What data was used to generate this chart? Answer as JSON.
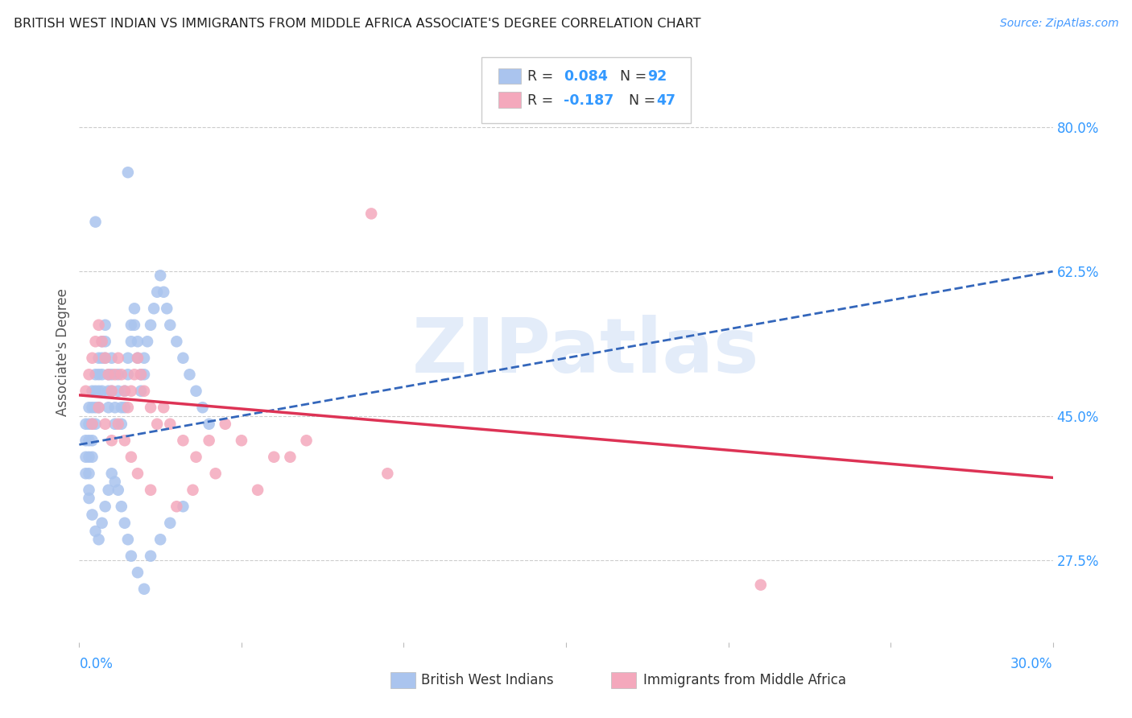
{
  "title": "BRITISH WEST INDIAN VS IMMIGRANTS FROM MIDDLE AFRICA ASSOCIATE'S DEGREE CORRELATION CHART",
  "source": "Source: ZipAtlas.com",
  "ylabel": "Associate's Degree",
  "ytick_labels": [
    "27.5%",
    "45.0%",
    "62.5%",
    "80.0%"
  ],
  "ytick_values": [
    0.275,
    0.45,
    0.625,
    0.8
  ],
  "xmin": 0.0,
  "xmax": 0.3,
  "ymin": 0.175,
  "ymax": 0.88,
  "blue_R": 0.084,
  "blue_N": 92,
  "pink_R": -0.187,
  "pink_N": 47,
  "blue_color": "#aac4ee",
  "pink_color": "#f4a8bc",
  "blue_line_color": "#3366bb",
  "pink_line_color": "#dd3355",
  "legend_label_blue": "British West Indians",
  "legend_label_pink": "Immigrants from Middle Africa",
  "blue_line_x0": 0.0,
  "blue_line_y0": 0.415,
  "blue_line_x1": 0.3,
  "blue_line_y1": 0.625,
  "pink_line_x0": 0.0,
  "pink_line_y0": 0.475,
  "pink_line_x1": 0.3,
  "pink_line_y1": 0.375,
  "watermark_text": "ZIPatlas",
  "blue_scatter_x": [
    0.002,
    0.002,
    0.002,
    0.002,
    0.003,
    0.003,
    0.003,
    0.003,
    0.003,
    0.003,
    0.004,
    0.004,
    0.004,
    0.004,
    0.004,
    0.005,
    0.005,
    0.005,
    0.005,
    0.006,
    0.006,
    0.006,
    0.006,
    0.007,
    0.007,
    0.007,
    0.007,
    0.008,
    0.008,
    0.008,
    0.009,
    0.009,
    0.009,
    0.01,
    0.01,
    0.01,
    0.011,
    0.011,
    0.012,
    0.012,
    0.013,
    0.013,
    0.014,
    0.014,
    0.015,
    0.015,
    0.016,
    0.016,
    0.017,
    0.017,
    0.018,
    0.018,
    0.019,
    0.019,
    0.02,
    0.02,
    0.021,
    0.022,
    0.023,
    0.024,
    0.025,
    0.026,
    0.027,
    0.028,
    0.03,
    0.032,
    0.034,
    0.036,
    0.038,
    0.04,
    0.003,
    0.004,
    0.005,
    0.006,
    0.007,
    0.008,
    0.009,
    0.01,
    0.011,
    0.012,
    0.013,
    0.014,
    0.015,
    0.016,
    0.018,
    0.02,
    0.022,
    0.025,
    0.028,
    0.032,
    0.015,
    0.005
  ],
  "blue_scatter_y": [
    0.44,
    0.42,
    0.4,
    0.38,
    0.46,
    0.44,
    0.42,
    0.4,
    0.38,
    0.36,
    0.48,
    0.46,
    0.44,
    0.42,
    0.4,
    0.5,
    0.48,
    0.46,
    0.44,
    0.52,
    0.5,
    0.48,
    0.46,
    0.54,
    0.52,
    0.5,
    0.48,
    0.56,
    0.54,
    0.52,
    0.5,
    0.48,
    0.46,
    0.52,
    0.5,
    0.48,
    0.46,
    0.44,
    0.5,
    0.48,
    0.46,
    0.44,
    0.48,
    0.46,
    0.52,
    0.5,
    0.56,
    0.54,
    0.58,
    0.56,
    0.54,
    0.52,
    0.5,
    0.48,
    0.52,
    0.5,
    0.54,
    0.56,
    0.58,
    0.6,
    0.62,
    0.6,
    0.58,
    0.56,
    0.54,
    0.52,
    0.5,
    0.48,
    0.46,
    0.44,
    0.35,
    0.33,
    0.31,
    0.3,
    0.32,
    0.34,
    0.36,
    0.38,
    0.37,
    0.36,
    0.34,
    0.32,
    0.3,
    0.28,
    0.26,
    0.24,
    0.28,
    0.3,
    0.32,
    0.34,
    0.745,
    0.685
  ],
  "pink_scatter_x": [
    0.002,
    0.003,
    0.004,
    0.005,
    0.006,
    0.007,
    0.008,
    0.009,
    0.01,
    0.011,
    0.012,
    0.013,
    0.014,
    0.015,
    0.016,
    0.017,
    0.018,
    0.019,
    0.02,
    0.022,
    0.024,
    0.026,
    0.028,
    0.032,
    0.036,
    0.04,
    0.045,
    0.05,
    0.06,
    0.07,
    0.004,
    0.006,
    0.008,
    0.01,
    0.012,
    0.014,
    0.016,
    0.018,
    0.022,
    0.03,
    0.035,
    0.042,
    0.055,
    0.065,
    0.095,
    0.21,
    0.09
  ],
  "pink_scatter_y": [
    0.48,
    0.5,
    0.52,
    0.54,
    0.56,
    0.54,
    0.52,
    0.5,
    0.48,
    0.5,
    0.52,
    0.5,
    0.48,
    0.46,
    0.48,
    0.5,
    0.52,
    0.5,
    0.48,
    0.46,
    0.44,
    0.46,
    0.44,
    0.42,
    0.4,
    0.42,
    0.44,
    0.42,
    0.4,
    0.42,
    0.44,
    0.46,
    0.44,
    0.42,
    0.44,
    0.42,
    0.4,
    0.38,
    0.36,
    0.34,
    0.36,
    0.38,
    0.36,
    0.4,
    0.38,
    0.245,
    0.695
  ]
}
